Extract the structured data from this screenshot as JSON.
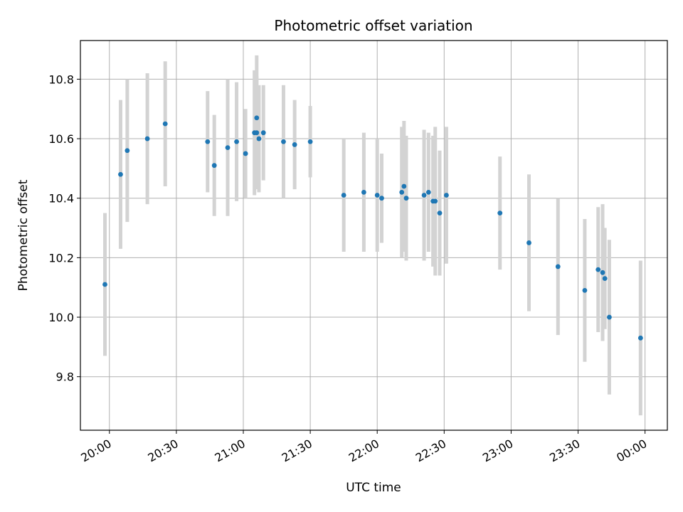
{
  "chart_data": {
    "type": "scatter",
    "title": "Photometric offset variation",
    "xlabel": "UTC time",
    "ylabel": "Photometric offset",
    "x_ticks": [
      "20:00",
      "20:30",
      "21:00",
      "21:30",
      "22:00",
      "22:30",
      "23:00",
      "23:30",
      "00:00"
    ],
    "y_ticks": [
      "9.8",
      "10.0",
      "10.2",
      "10.4",
      "10.6",
      "10.8"
    ],
    "xlim": [
      "19:47",
      "00:10"
    ],
    "ylim": [
      9.62,
      10.93
    ],
    "grid": true,
    "colors": {
      "point": "#1f77b4",
      "errorbar": "#d3d3d3",
      "grid": "#b0b0b0"
    },
    "points": [
      {
        "x": "19:58",
        "y": 10.11,
        "yerr": 0.24
      },
      {
        "x": "20:05",
        "y": 10.48,
        "yerr": 0.25
      },
      {
        "x": "20:08",
        "y": 10.56,
        "yerr": 0.24
      },
      {
        "x": "20:17",
        "y": 10.6,
        "yerr": 0.22
      },
      {
        "x": "20:25",
        "y": 10.65,
        "yerr": 0.21
      },
      {
        "x": "20:44",
        "y": 10.59,
        "yerr": 0.17
      },
      {
        "x": "20:47",
        "y": 10.51,
        "yerr": 0.17
      },
      {
        "x": "20:53",
        "y": 10.57,
        "yerr": 0.23
      },
      {
        "x": "20:57",
        "y": 10.59,
        "yerr": 0.2
      },
      {
        "x": "21:01",
        "y": 10.55,
        "yerr": 0.15
      },
      {
        "x": "21:05",
        "y": 10.62,
        "yerr": 0.21
      },
      {
        "x": "21:06",
        "y": 10.67,
        "yerr": 0.21
      },
      {
        "x": "21:06",
        "y": 10.62,
        "yerr": 0.19
      },
      {
        "x": "21:07",
        "y": 10.6,
        "yerr": 0.18
      },
      {
        "x": "21:09",
        "y": 10.62,
        "yerr": 0.16
      },
      {
        "x": "21:18",
        "y": 10.59,
        "yerr": 0.19
      },
      {
        "x": "21:23",
        "y": 10.58,
        "yerr": 0.15
      },
      {
        "x": "21:30",
        "y": 10.59,
        "yerr": 0.12
      },
      {
        "x": "21:45",
        "y": 10.41,
        "yerr": 0.19
      },
      {
        "x": "21:54",
        "y": 10.42,
        "yerr": 0.2
      },
      {
        "x": "22:00",
        "y": 10.41,
        "yerr": 0.19
      },
      {
        "x": "22:02",
        "y": 10.4,
        "yerr": 0.15
      },
      {
        "x": "22:11",
        "y": 10.42,
        "yerr": 0.22
      },
      {
        "x": "22:12",
        "y": 10.44,
        "yerr": 0.22
      },
      {
        "x": "22:13",
        "y": 10.4,
        "yerr": 0.21
      },
      {
        "x": "22:21",
        "y": 10.41,
        "yerr": 0.22
      },
      {
        "x": "22:23",
        "y": 10.42,
        "yerr": 0.2
      },
      {
        "x": "22:25",
        "y": 10.39,
        "yerr": 0.22
      },
      {
        "x": "22:26",
        "y": 10.39,
        "yerr": 0.25
      },
      {
        "x": "22:28",
        "y": 10.35,
        "yerr": 0.21
      },
      {
        "x": "22:31",
        "y": 10.41,
        "yerr": 0.23
      },
      {
        "x": "22:55",
        "y": 10.35,
        "yerr": 0.19
      },
      {
        "x": "23:08",
        "y": 10.25,
        "yerr": 0.23
      },
      {
        "x": "23:21",
        "y": 10.17,
        "yerr": 0.23
      },
      {
        "x": "23:33",
        "y": 10.09,
        "yerr": 0.24
      },
      {
        "x": "23:39",
        "y": 10.16,
        "yerr": 0.21
      },
      {
        "x": "23:41",
        "y": 10.15,
        "yerr": 0.23
      },
      {
        "x": "23:42",
        "y": 10.13,
        "yerr": 0.17
      },
      {
        "x": "23:44",
        "y": 10.0,
        "yerr": 0.26
      },
      {
        "x": "23:58",
        "y": 9.93,
        "yerr": 0.26
      }
    ]
  }
}
